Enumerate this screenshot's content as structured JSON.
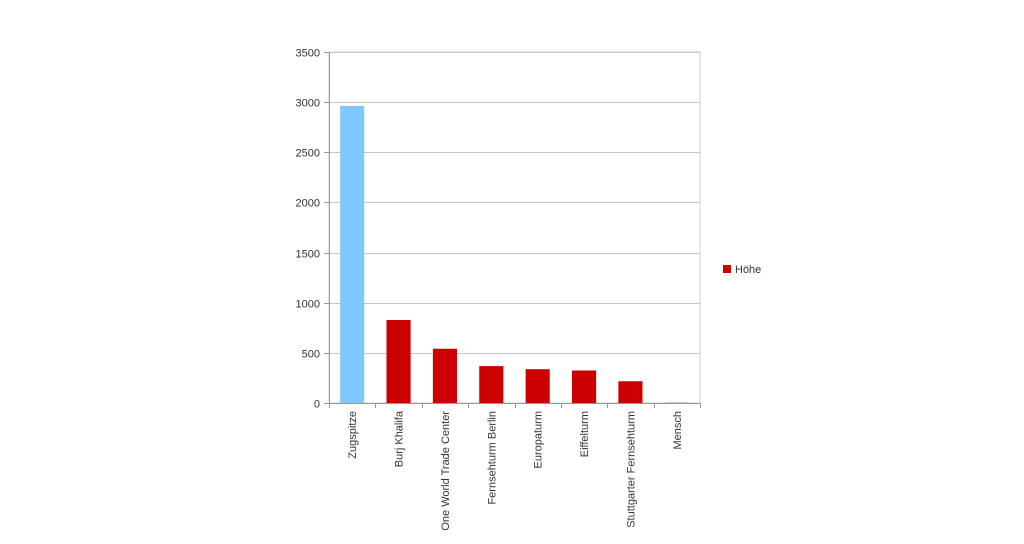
{
  "chart_data": {
    "type": "bar",
    "categories": [
      "Zugspitze",
      "Burj Khalifa",
      "One World Trade Center",
      "Fernsehturm Berlin",
      "Europaturm",
      "Eiffelturm",
      "Stuttgarter Fernsehturm",
      "Mensch"
    ],
    "series": [
      {
        "name": "Höhe",
        "values": [
          2962,
          828,
          541,
          368,
          337,
          324,
          217,
          2
        ],
        "color": "#cc0000"
      }
    ],
    "highlight": {
      "index": 0,
      "color": "#7fc8ff"
    },
    "ylim": [
      0,
      3500
    ],
    "yticks": [
      0,
      500,
      1000,
      1500,
      2000,
      2500,
      3000,
      3500
    ],
    "grid": true,
    "legend": "right",
    "title": "",
    "xlabel": "",
    "ylabel": ""
  }
}
